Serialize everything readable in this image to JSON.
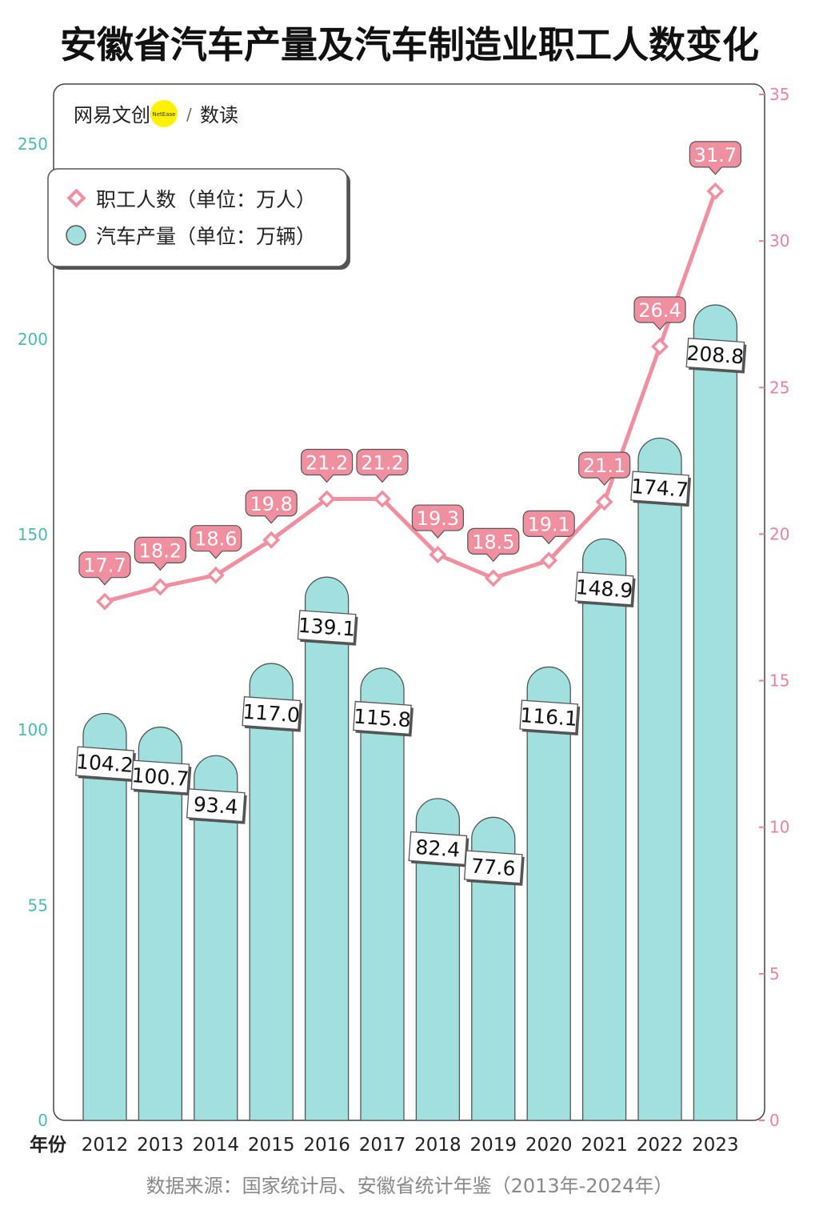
{
  "title": "安徽省汽车产量及汽车制造业职工人数变化",
  "brand": {
    "name": "网易文创",
    "badge_text": "NetEase",
    "slash": "/",
    "sub": "数读"
  },
  "source": "数据来源：国家统计局、安徽省统计年鉴（2013年-2024年）",
  "colors": {
    "bar": "#a0e1df",
    "bar_stroke": "#555555",
    "line": "#ef8fa0",
    "left_axis": "#4fb9b3",
    "right_axis": "#e7839a",
    "badge": "#fff100"
  },
  "chart_data": {
    "type": "bar",
    "xlabel": "年份",
    "categories": [
      "2012",
      "2013",
      "2014",
      "2015",
      "2016",
      "2017",
      "2018",
      "2019",
      "2020",
      "2021",
      "2022",
      "2023"
    ],
    "y_left": {
      "ticks": [
        "0",
        "55",
        "100",
        "150",
        "200",
        "250"
      ],
      "ylim": [
        0,
        250
      ]
    },
    "y_right": {
      "ticks": [
        "0",
        "5",
        "10",
        "15",
        "20",
        "25",
        "30",
        "35"
      ],
      "ylim": [
        0,
        35
      ]
    },
    "legend_position": "top-left",
    "series": [
      {
        "name": "汽车产量（单位：万辆）",
        "type": "bar",
        "axis": "left",
        "values": [
          104.2,
          100.7,
          93.4,
          117.0,
          139.1,
          115.8,
          82.4,
          77.6,
          116.1,
          148.9,
          174.7,
          208.8
        ],
        "labels": [
          "104.2",
          "100.7",
          "93.4",
          "117.0",
          "139.1",
          "115.8",
          "82.4",
          "77.6",
          "116.1",
          "148.9",
          "174.7",
          "208.8"
        ]
      },
      {
        "name": "职工人数（单位：万人）",
        "type": "line",
        "axis": "right",
        "values": [
          17.7,
          18.2,
          18.6,
          19.8,
          21.2,
          21.2,
          19.3,
          18.5,
          19.1,
          21.1,
          26.4,
          31.7
        ],
        "labels": [
          "17.7",
          "18.2",
          "18.6",
          "19.8",
          "21.2",
          "21.2",
          "19.3",
          "18.5",
          "19.1",
          "21.1",
          "26.4",
          "31.7"
        ]
      }
    ]
  }
}
